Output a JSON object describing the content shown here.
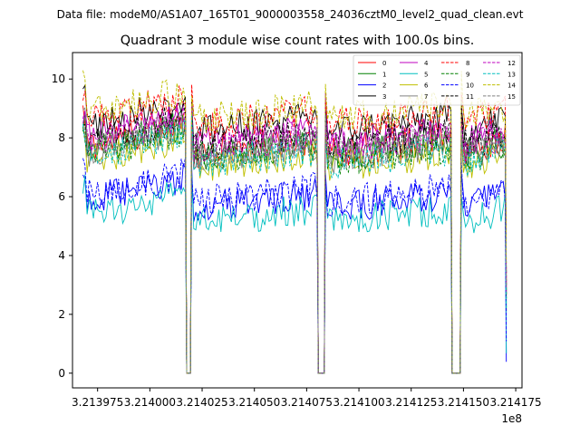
{
  "chart_data": {
    "type": "line",
    "suptitle": "Data file: modeM0/AS1A07_165T01_9000003558_24036cztM0_level2_quad_clean.evt",
    "title": "Quadrant 3 module wise count rates with 100.0s bins.",
    "xlabel": "",
    "ylabel": "",
    "x_offset_label": "1e8",
    "xlim": [
      3.213963,
      3.214178
    ],
    "ylim": [
      -0.5,
      10.9
    ],
    "x_ticks": [
      3.213975,
      3.214,
      3.214025,
      3.21405,
      3.214075,
      3.2141,
      3.214125,
      3.21415,
      3.214175
    ],
    "x_tick_labels": [
      "3.213975",
      "3.214000",
      "3.214025",
      "3.214050",
      "3.214075",
      "3.214100",
      "3.214125",
      "3.214150",
      "3.214175"
    ],
    "y_ticks": [
      0,
      2,
      4,
      6,
      8,
      10
    ],
    "y_tick_labels": [
      "0",
      "2",
      "4",
      "6",
      "8",
      "10"
    ],
    "grid": false,
    "legend_position": "top-right",
    "segments": [
      {
        "x_start": 3.213968,
        "x_end": 3.214017,
        "gap_after": [
          3.214017,
          3.21402
        ]
      },
      {
        "x_start": 3.21402,
        "x_end": 3.21408,
        "gap_after": [
          3.21408,
          3.214084
        ]
      },
      {
        "x_start": 3.214084,
        "x_end": 3.214144,
        "gap_after": [
          3.214144,
          3.214149
        ]
      },
      {
        "x_start": 3.214149,
        "x_end": 3.21417
      }
    ],
    "series": [
      {
        "name": "0",
        "color": "#ff0000",
        "dash": "solid",
        "level": 7.7
      },
      {
        "name": "1",
        "color": "#008000",
        "dash": "solid",
        "level": 7.6
      },
      {
        "name": "2",
        "color": "#0000ff",
        "dash": "solid",
        "level": 5.8
      },
      {
        "name": "3",
        "color": "#000000",
        "dash": "solid",
        "level": 8.4
      },
      {
        "name": "4",
        "color": "#bf00bf",
        "dash": "solid",
        "level": 8.0
      },
      {
        "name": "5",
        "color": "#00bfbf",
        "dash": "solid",
        "level": 5.3
      },
      {
        "name": "6",
        "color": "#bfbf00",
        "dash": "solid",
        "level": 7.2
      },
      {
        "name": "7",
        "color": "#808080",
        "dash": "solid",
        "level": 7.5
      },
      {
        "name": "8",
        "color": "#ff0000",
        "dash": "dashed",
        "level": 8.6
      },
      {
        "name": "9",
        "color": "#008000",
        "dash": "dashed",
        "level": 7.4
      },
      {
        "name": "10",
        "color": "#0000ff",
        "dash": "dashed",
        "level": 6.0
      },
      {
        "name": "11",
        "color": "#000000",
        "dash": "dashed",
        "level": 7.9
      },
      {
        "name": "12",
        "color": "#bf00bf",
        "dash": "dashed",
        "level": 7.8
      },
      {
        "name": "13",
        "color": "#00bfbf",
        "dash": "dashed",
        "level": 7.3
      },
      {
        "name": "14",
        "color": "#bfbf00",
        "dash": "dashed",
        "level": 8.8
      },
      {
        "name": "15",
        "color": "#808080",
        "dash": "dashed",
        "level": 7.6
      }
    ]
  }
}
